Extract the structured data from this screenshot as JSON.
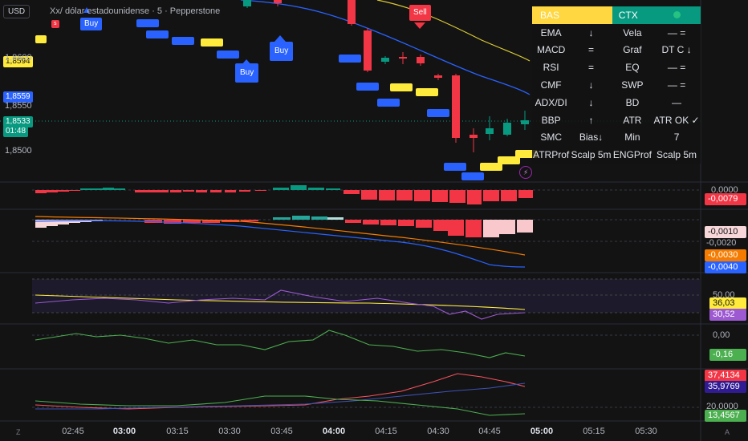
{
  "header": {
    "currency_button": "USD",
    "symbol_title": "Xx/ dólar estadounidense · 5 · Pepperstone"
  },
  "price_axis": {
    "labels": [
      "1,8600",
      "1,8550",
      "1,8500"
    ],
    "tags": [
      {
        "value": "1,8594",
        "bg": "#ffeb3b",
        "fg": "#131313"
      },
      {
        "value": "1,8559",
        "bg": "#2962ff",
        "fg": "#ffffff"
      },
      {
        "value": "1,8533",
        "bg": "#089981",
        "fg": "#ffffff"
      }
    ],
    "countdown": "01:48"
  },
  "signals": {
    "buy_label": "Buy",
    "sell_label": "Sell"
  },
  "panel": {
    "head_left": "BAS",
    "head_right": "CTX",
    "rows": [
      {
        "l": "EMA",
        "lv": "↓",
        "r": "Vela",
        "rv": "— ="
      },
      {
        "l": "MACD",
        "lv": "=",
        "r": "Graf",
        "rv": "DT C ↓"
      },
      {
        "l": "RSI",
        "lv": "=",
        "r": "EQ",
        "rv": "— ="
      },
      {
        "l": "CMF",
        "lv": "↓",
        "r": "SWP",
        "rv": "— ="
      },
      {
        "l": "ADX/DI",
        "lv": "↓",
        "r": "BD",
        "rv": "—"
      },
      {
        "l": "BBP",
        "lv": "↑",
        "r": "ATR",
        "rv": "ATR OK ✓"
      },
      {
        "l": "SMC",
        "lv": "Bias↓",
        "r": "Min",
        "rv": "7"
      },
      {
        "l": "ATRProf",
        "lv": "Scalp 5m",
        "r": "ENGProf",
        "rv": "Scalp 5m"
      }
    ]
  },
  "indicators": {
    "pane1": {
      "zero": "0,0000",
      "tag": "-0,0079"
    },
    "pane2": {
      "level": "-0,0020",
      "tags": [
        "-0,0010",
        "-0,0030",
        "-0,0040"
      ]
    },
    "pane3": {
      "level": "50,00",
      "tags": [
        "36,03",
        "30,52"
      ]
    },
    "pane4": {
      "zero": "0,00",
      "tag": "-0,16"
    },
    "pane5": {
      "level": "20,0000",
      "tags": [
        "37,4134",
        "35,9769",
        "13,4567"
      ]
    }
  },
  "time_axis": {
    "labels": [
      {
        "t": "02:45",
        "bold": false
      },
      {
        "t": "03:00",
        "bold": true
      },
      {
        "t": "03:15",
        "bold": false
      },
      {
        "t": "03:30",
        "bold": false
      },
      {
        "t": "03:45",
        "bold": false
      },
      {
        "t": "04:00",
        "bold": true
      },
      {
        "t": "04:15",
        "bold": false
      },
      {
        "t": "04:30",
        "bold": false
      },
      {
        "t": "04:45",
        "bold": false
      },
      {
        "t": "05:00",
        "bold": true
      },
      {
        "t": "05:15",
        "bold": false
      },
      {
        "t": "05:30",
        "bold": false
      }
    ]
  },
  "icons": {
    "bottom_left": "Z",
    "bottom_right": "A",
    "lightning": "⚡"
  },
  "colors": {
    "up": "#089981",
    "down": "#f23645",
    "ema_blue": "#2962ff",
    "ema_yellow": "#ffeb3b"
  }
}
